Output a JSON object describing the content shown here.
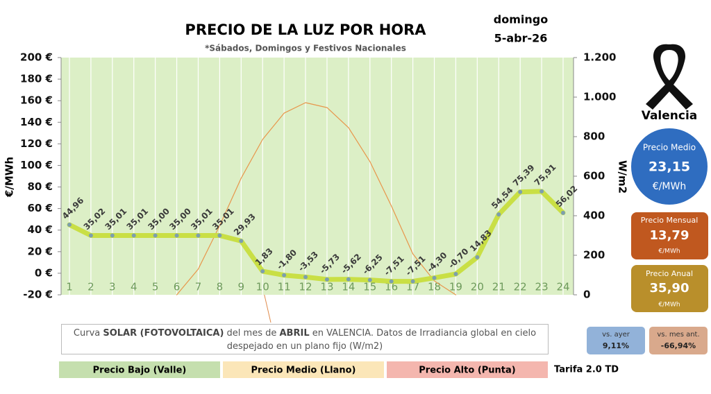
{
  "chart_data": {
    "type": "line",
    "title": "PRECIO DE LA LUZ POR HORA",
    "subtitle": "*Sábados, Domingos y Festivos Nacionales",
    "categories": [
      "1",
      "2",
      "3",
      "4",
      "5",
      "6",
      "7",
      "8",
      "9",
      "10",
      "11",
      "12",
      "13",
      "14",
      "15",
      "16",
      "17",
      "18",
      "19",
      "20",
      "21",
      "22",
      "23",
      "24"
    ],
    "series": [
      {
        "color": "#c9df45",
        "marker_color": "#7d9fae",
        "values": [
          44.96,
          35.02,
          35.01,
          35.01,
          35.0,
          35.0,
          35.01,
          35.01,
          29.93,
          1.83,
          -1.8,
          -3.53,
          -5.73,
          -5.62,
          -6.25,
          -7.51,
          -7.51,
          -4.3,
          -0.7,
          14.83,
          54.54,
          75.39,
          75.91,
          56.02
        ],
        "value_labels": [
          "44,96",
          "35,02",
          "35,01",
          "35,01",
          "35,00",
          "35,00",
          "35,01",
          "35,01",
          "29,93",
          "1,83",
          "-1,80",
          "-3,53",
          "-5,73",
          "-5,62",
          "-6,25",
          "-7,51",
          "-7,51",
          "-4,30",
          "-0,70",
          "14,83",
          "54,54",
          "75,39",
          "75,91",
          "56,02"
        ]
      },
      {
        "color": "#e8954a",
        "axis": "y2",
        "values": [
          null,
          null,
          null,
          null,
          null,
          0,
          130,
          350,
          590,
          786,
          919,
          972,
          947,
          846,
          674,
          449,
          207,
          70,
          0,
          null,
          null,
          null,
          null,
          null
        ]
      }
    ],
    "ylim": [
      -20,
      200
    ],
    "yticks": [
      {
        "value": -20,
        "label": "-20 €"
      },
      {
        "value": 0,
        "label": "0 €"
      },
      {
        "value": 20,
        "label": "20 €"
      },
      {
        "value": 40,
        "label": "40 €"
      },
      {
        "value": 60,
        "label": "60 €"
      },
      {
        "value": 80,
        "label": "80 €"
      },
      {
        "value": 100,
        "label": "100 €"
      },
      {
        "value": 120,
        "label": "120 €"
      },
      {
        "value": 140,
        "label": "140 €"
      },
      {
        "value": 160,
        "label": "160 €"
      },
      {
        "value": 180,
        "label": "180 €"
      },
      {
        "value": 200,
        "label": "200 €"
      }
    ],
    "y2lim": [
      0,
      1200
    ],
    "y2ticks": [
      0,
      200,
      400,
      600,
      800,
      {
        "value": 1000,
        "label": "1.000"
      },
      {
        "value": 1200,
        "label": "1.200"
      }
    ],
    "y_label": "€/MWh",
    "y2_label": "W/m2",
    "grid": "x",
    "plot_background": "#dcefc6",
    "caption": [
      "Curva ",
      "SOLAR (FOTOVOLTAICA)",
      " del mes de ",
      "ABRIL",
      " en VALENCIA. Datos de Irradiancia global en cielo despejado en un plano fijo (W/m2)"
    ]
  },
  "header": {
    "day": "domingo",
    "date": "5-abr-26"
  },
  "panel": {
    "city": "Valencia",
    "medio": {
      "label": "Precio Medio",
      "value": "23,15",
      "unit": "€/MWh",
      "color": "#2f6dc0"
    },
    "mensual": {
      "label": "Precio Mensual",
      "value": "13,79",
      "unit": "€/MWh",
      "color": "#c0581f"
    },
    "anual": {
      "label": "Precio Anual",
      "value": "35,90",
      "unit": "€/MWh",
      "color": "#b98f2b"
    },
    "ayer": {
      "label": "vs. ayer",
      "value": "9,11%",
      "color": "#92b2d9"
    },
    "mes_ant": {
      "label": "vs. mes ant.",
      "value": "-66,94%",
      "color": "#d9a98c"
    }
  },
  "legend": [
    {
      "label": "Precio Bajo (Valle)",
      "color": "#c5dfae"
    },
    {
      "label": "Precio Medio (Llano)",
      "color": "#fbe6b8"
    },
    {
      "label": "Precio Alto (Punta)",
      "color": "#f4b6ae"
    }
  ],
  "tarifa": "Tarifa 2.0 TD"
}
